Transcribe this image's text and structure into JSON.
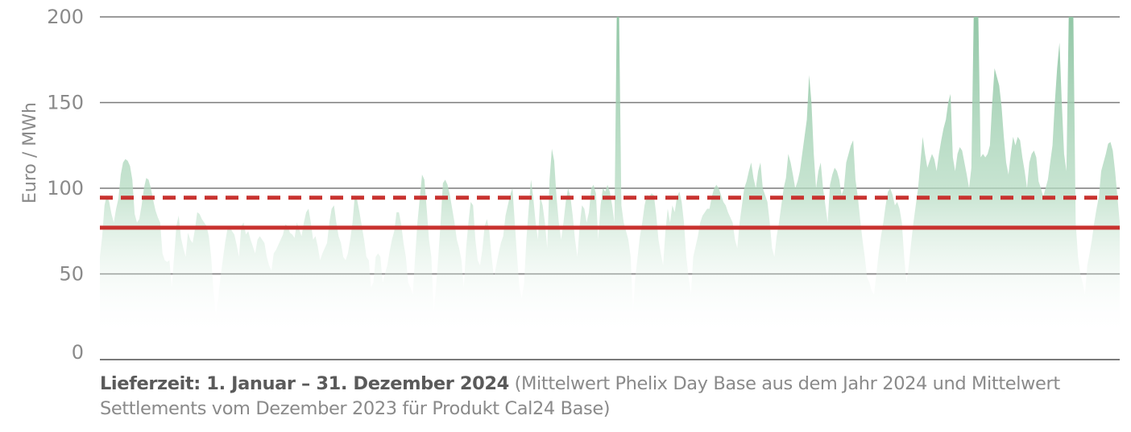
{
  "caption": {
    "lead": "Lieferzeit: 1. Januar – 31. Dezember 2024",
    "rest": "(Mittelwert Phelix Day Base aus dem Jahr 2024 und Mittelwert Settlements vom Dezember 2023 für Produkt Cal24 Base)"
  },
  "colors": {
    "area_top": "#8dc4a2",
    "area_bottom": "#ffffff",
    "reference_lines": "#c8322f",
    "grid": "#7a7a7a",
    "text": "#8a8a8a"
  },
  "chart_data": {
    "type": "area",
    "title": "",
    "xlabel": "",
    "ylabel": "Euro / MWh",
    "ylim": [
      0,
      200
    ],
    "yticks": [
      "0",
      "50",
      "100",
      "150",
      "200"
    ],
    "grid": true,
    "x_start": "2024-01-01",
    "x_end": "2024-12-31",
    "series": [
      {
        "type": "area",
        "values": [
          60,
          72,
          90,
          96,
          92,
          85,
          80,
          88,
          94,
          108,
          115,
          117,
          116,
          113,
          105,
          85,
          80,
          82,
          90,
          100,
          106,
          105,
          100,
          93,
          87,
          83,
          80,
          62,
          58,
          57,
          58,
          42,
          60,
          78,
          84,
          71,
          65,
          60,
          74,
          70,
          68,
          76,
          86,
          85,
          82,
          80,
          78,
          72,
          60,
          40,
          25,
          35,
          48,
          58,
          68,
          76,
          78,
          75,
          73,
          67,
          60,
          78,
          80,
          73,
          75,
          70,
          66,
          62,
          70,
          72,
          70,
          68,
          60,
          55,
          52,
          62,
          64,
          67,
          70,
          73,
          79,
          78,
          74,
          73,
          71,
          80,
          76,
          72,
          80,
          86,
          88,
          80,
          70,
          72,
          66,
          58,
          62,
          65,
          68,
          80,
          88,
          90,
          80,
          72,
          68,
          60,
          58,
          62,
          70,
          80,
          96,
          93,
          86,
          78,
          70,
          60,
          58,
          42,
          45,
          60,
          62,
          60,
          45,
          50,
          55,
          63,
          70,
          75,
          86,
          86,
          79,
          68,
          60,
          45,
          42,
          38,
          60,
          80,
          94,
          108,
          105,
          88,
          70,
          60,
          28,
          42,
          60,
          80,
          103,
          105,
          102,
          96,
          88,
          80,
          70,
          65,
          58,
          42,
          65,
          80,
          92,
          90,
          70,
          58,
          55,
          64,
          78,
          82,
          75,
          60,
          48,
          55,
          62,
          68,
          72,
          84,
          90,
          96,
          100,
          80,
          60,
          42,
          36,
          44,
          70,
          88,
          105,
          94,
          80,
          70,
          95,
          90,
          80,
          65,
          105,
          123,
          116,
          95,
          80,
          70,
          80,
          92,
          100,
          95,
          84,
          70,
          60,
          78,
          90,
          88,
          80,
          86,
          100,
          102,
          97,
          70,
          90,
          100,
          98,
          102,
          98,
          90,
          80,
          200,
          200,
          90,
          80,
          75,
          70,
          60,
          28,
          48,
          60,
          72,
          80,
          90,
          96,
          95,
          97,
          96,
          85,
          70,
          62,
          55,
          75,
          88,
          80,
          90,
          86,
          95,
          98,
          92,
          80,
          60,
          48,
          38,
          60,
          66,
          72,
          80,
          84,
          86,
          88,
          88,
          95,
          100,
          102,
          100,
          96,
          92,
          90,
          86,
          83,
          80,
          70,
          65,
          80,
          90,
          100,
          104,
          110,
          115,
          106,
          100,
          110,
          115,
          100,
          96,
          92,
          80,
          65,
          60,
          72,
          80,
          90,
          100,
          106,
          120,
          115,
          108,
          100,
          104,
          110,
          120,
          130,
          140,
          166,
          150,
          120,
          100,
          110,
          115,
          100,
          90,
          80,
          102,
          108,
          112,
          110,
          105,
          96,
          100,
          115,
          120,
          125,
          128,
          105,
          95,
          82,
          70,
          60,
          48,
          45,
          40,
          38,
          50,
          62,
          72,
          80,
          90,
          98,
          100,
          96,
          90,
          92,
          88,
          80,
          60,
          45,
          55,
          68,
          80,
          90,
          100,
          115,
          130,
          120,
          112,
          116,
          120,
          117,
          110,
          120,
          128,
          135,
          140,
          150,
          155,
          118,
          110,
          120,
          124,
          122,
          115,
          108,
          100,
          112,
          200,
          200,
          200,
          118,
          120,
          118,
          120,
          125,
          150,
          170,
          165,
          160,
          148,
          130,
          115,
          108,
          120,
          130,
          125,
          130,
          128,
          118,
          110,
          100,
          115,
          120,
          122,
          118,
          104,
          100,
          95,
          100,
          105,
          115,
          125,
          150,
          170,
          185,
          150,
          120,
          110,
          200,
          200,
          200,
          80,
          60,
          50,
          45,
          38,
          55,
          62,
          70,
          80,
          88,
          95,
          110,
          115,
          120,
          126,
          127,
          122,
          110,
          95,
          80
        ],
        "notes": "Phelix Day Base daily price 2024; spikes above 200 are clipped at the top of the chart"
      },
      {
        "type": "hline",
        "style": "dashed",
        "value": 94.5
      },
      {
        "type": "hline",
        "style": "solid",
        "value": 77
      }
    ]
  }
}
